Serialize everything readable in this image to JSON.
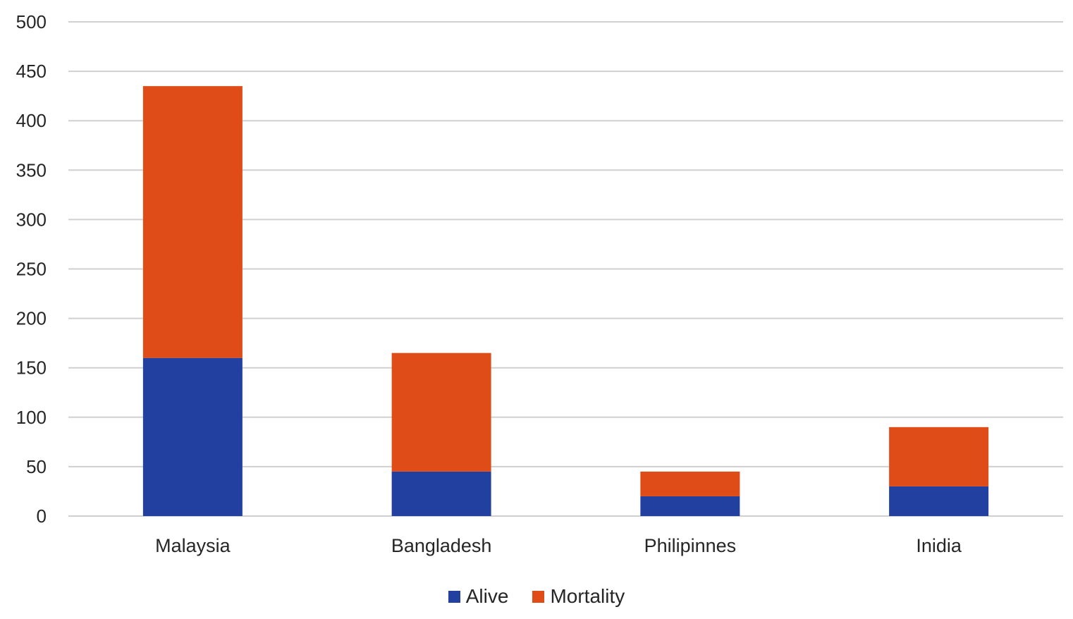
{
  "chart_data": {
    "type": "bar",
    "stacked": true,
    "categories": [
      "Malaysia",
      "Bangladesh",
      "Philipinnes",
      "Inidia"
    ],
    "series": [
      {
        "name": "Alive",
        "values": [
          160,
          45,
          20,
          30
        ],
        "color": "#2240A0"
      },
      {
        "name": "Mortality",
        "values": [
          275,
          120,
          25,
          60
        ],
        "color": "#E04C18"
      }
    ],
    "totals": [
      435,
      165,
      45,
      90
    ],
    "ylim": [
      0,
      500
    ],
    "yticks": [
      "0",
      "50",
      "100",
      "150",
      "200",
      "250",
      "300",
      "350",
      "400",
      "450",
      "500"
    ],
    "title": "",
    "xlabel": "",
    "ylabel": "",
    "grid": true,
    "legend_position": "bottom",
    "colors": {
      "gridline": "#D0D0D0",
      "text": "#262626"
    }
  }
}
